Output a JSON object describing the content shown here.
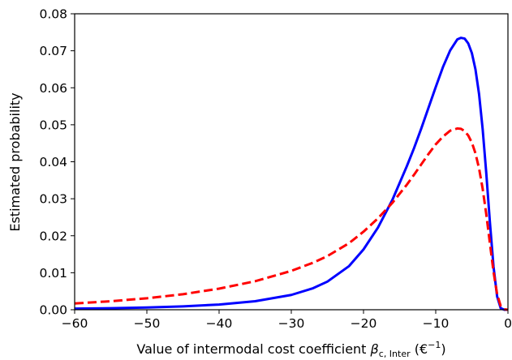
{
  "chart_data": {
    "type": "line",
    "xlabel_prefix": "Value of intermodal cost coefficient ",
    "xlabel_symbol": "β",
    "xlabel_subscript": "c, Inter",
    "xlabel_unit_open": " (€",
    "xlabel_unit_exp": "−1",
    "xlabel_unit_close": ")",
    "ylabel": "Estimated probability",
    "xlim": [
      -60,
      0
    ],
    "ylim": [
      0,
      0.08
    ],
    "x_ticks": [
      -60,
      -50,
      -40,
      -30,
      -20,
      -10,
      0
    ],
    "x_tick_labels": [
      "−60",
      "−50",
      "−40",
      "−30",
      "−20",
      "−10",
      "0"
    ],
    "y_ticks": [
      0,
      0.01,
      0.02,
      0.03,
      0.04,
      0.05,
      0.06,
      0.07,
      0.08
    ],
    "y_tick_labels": [
      "0.00",
      "0.01",
      "0.02",
      "0.03",
      "0.04",
      "0.05",
      "0.06",
      "0.07",
      "0.08"
    ],
    "grid": false,
    "series": [
      {
        "style": "solid",
        "color": "#0000ff",
        "x": [
          -60,
          -55,
          -50,
          -45,
          -40,
          -35,
          -30,
          -27,
          -25,
          -22,
          -20,
          -18,
          -16,
          -14,
          -13,
          -12,
          -11,
          -10,
          -9,
          -8,
          -7,
          -6.5,
          -6,
          -5.5,
          -5,
          -4.5,
          -4,
          -3.5,
          -3,
          -2.5,
          -2,
          -1.5,
          -1,
          -0.5,
          0
        ],
        "y": [
          0.0003,
          0.0004,
          0.0006,
          0.0009,
          0.0014,
          0.0023,
          0.004,
          0.0058,
          0.0076,
          0.0118,
          0.0163,
          0.0222,
          0.0297,
          0.0388,
          0.0437,
          0.049,
          0.0546,
          0.0602,
          0.0656,
          0.0701,
          0.0731,
          0.0735,
          0.0733,
          0.072,
          0.0694,
          0.065,
          0.0583,
          0.0488,
          0.0369,
          0.0237,
          0.0117,
          0.0036,
          0.0004,
          0.0,
          0.0
        ]
      },
      {
        "style": "dashed",
        "color": "#ff0000",
        "x": [
          -60,
          -55,
          -50,
          -45,
          -40,
          -35,
          -30,
          -27,
          -25,
          -22,
          -20,
          -18,
          -16,
          -14,
          -13,
          -12,
          -11,
          -10,
          -9,
          -8,
          -7,
          -6.5,
          -6,
          -5.5,
          -5,
          -4.5,
          -4,
          -3.5,
          -3,
          -2.5,
          -2,
          -1.5,
          -1,
          -0.5,
          0
        ],
        "y": [
          0.0017,
          0.0023,
          0.0031,
          0.0042,
          0.0057,
          0.0077,
          0.0105,
          0.0127,
          0.0145,
          0.018,
          0.0211,
          0.0247,
          0.0289,
          0.0338,
          0.0365,
          0.0393,
          0.0421,
          0.0447,
          0.0468,
          0.0484,
          0.049,
          0.0489,
          0.0483,
          0.0471,
          0.0452,
          0.0423,
          0.0382,
          0.0327,
          0.0258,
          0.018,
          0.0103,
          0.0042,
          0.001,
          0.0001,
          0.0
        ]
      }
    ]
  }
}
